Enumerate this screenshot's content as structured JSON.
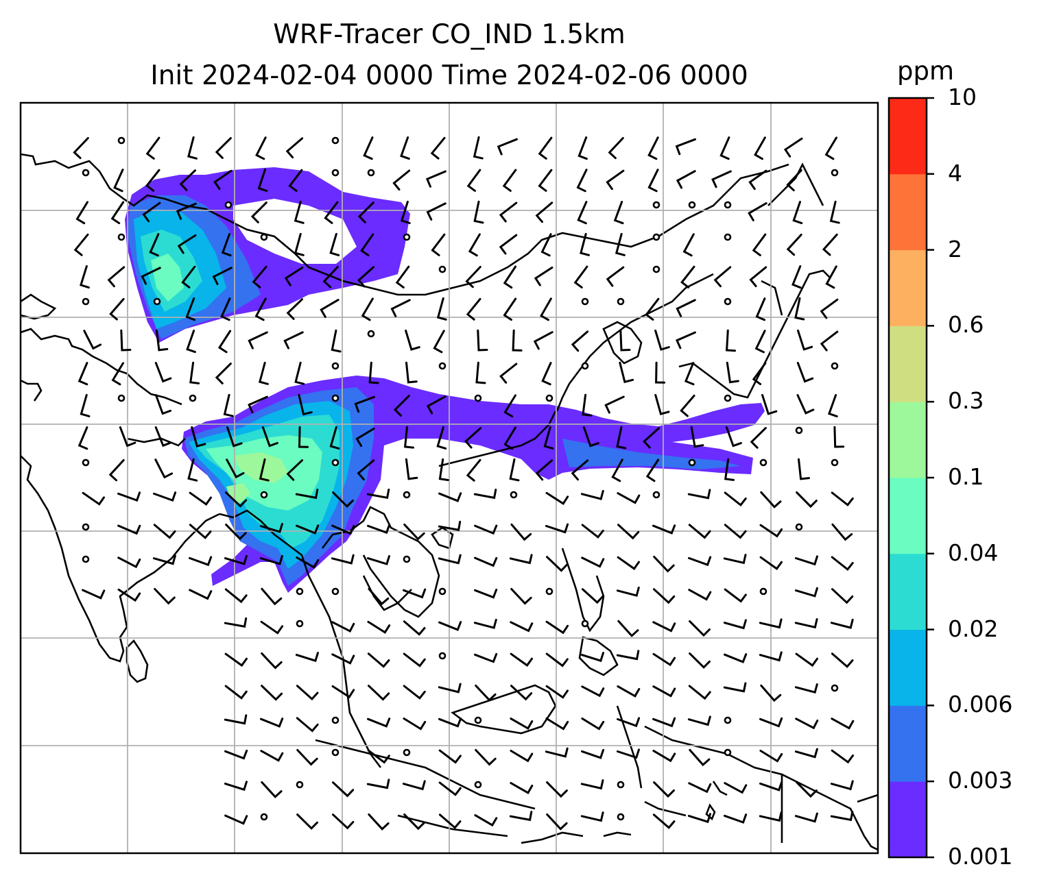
{
  "title": {
    "line1": "WRF-Tracer CO_IND 1.5km",
    "line2": "Init 2024-02-04 0000 Time 2024-02-06 0000"
  },
  "colorbar": {
    "unit": "ppm",
    "levels": [
      "0.001",
      "0.003",
      "0.006",
      "0.02",
      "0.04",
      "0.1",
      "0.3",
      "0.6",
      "2",
      "4",
      "10"
    ],
    "colors": [
      "#6a2cff",
      "#3472f0",
      "#08b4ea",
      "#2cdcd2",
      "#6afcc0",
      "#9cf89a",
      "#d0de82",
      "#fcb060",
      "#fd7338",
      "#fc2a16"
    ]
  },
  "chart_data": {
    "type": "heatmap",
    "variable": "CO_IND tracer concentration at 1.5km",
    "unit": "ppm",
    "levels": [
      0.001,
      0.003,
      0.006,
      0.02,
      0.04,
      0.1,
      0.3,
      0.6,
      2,
      4,
      10
    ],
    "features": [
      "coastlines",
      "country borders",
      "lat/lon gridlines",
      "wind barbs",
      "calm-wind circles"
    ],
    "plumes": [
      {
        "region": "northwest (South/Central Asia)",
        "max_level": "0.04-0.1"
      },
      {
        "region": "Bay of Bengal / Myanmar / Indochina",
        "max_level": "0.1-0.3"
      },
      {
        "region": "southern China to western Pacific band",
        "max_level": "0.003-0.006"
      }
    ],
    "grid": true,
    "legend": "right colorbar"
  }
}
